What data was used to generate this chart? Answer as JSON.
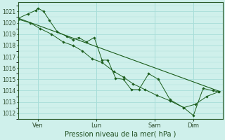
{
  "xlabel": "Pression niveau de la mer( hPa )",
  "background_color": "#cff0eb",
  "grid_color": "#a8ddd8",
  "line_color": "#1a5c1a",
  "marker_color": "#1a5c1a",
  "ylim": [
    1011.5,
    1021.8
  ],
  "yticks": [
    1012,
    1013,
    1014,
    1015,
    1016,
    1017,
    1018,
    1019,
    1020,
    1021
  ],
  "xtick_labels": [
    "Ven",
    "Lun",
    "Sam",
    "Dim"
  ],
  "xtick_positions": [
    1,
    4,
    7,
    9
  ],
  "xlim": [
    0,
    10.5
  ],
  "series1_x": [
    0.0,
    0.5,
    0.9,
    1.0,
    1.3,
    1.6,
    2.0,
    2.5,
    2.8,
    3.1,
    3.5,
    3.9,
    4.3,
    4.6,
    5.0,
    5.4,
    5.8,
    6.2,
    6.7,
    7.2,
    7.8,
    8.5,
    9.0,
    9.5,
    10.0,
    10.3
  ],
  "series1_y": [
    1020.4,
    1020.8,
    1021.1,
    1021.3,
    1021.0,
    1020.2,
    1019.2,
    1018.8,
    1018.5,
    1018.7,
    1018.3,
    1018.7,
    1016.7,
    1016.7,
    1015.1,
    1015.0,
    1014.1,
    1014.1,
    1015.5,
    1015.0,
    1013.2,
    1012.5,
    1011.8,
    1014.2,
    1014.0,
    1013.9
  ],
  "series2_x": [
    0.0,
    0.6,
    1.1,
    1.7,
    2.3,
    2.8,
    3.3,
    3.8,
    4.3,
    4.9,
    5.4,
    5.9,
    6.5,
    7.1,
    7.8,
    8.5,
    9.1,
    9.7,
    10.3
  ],
  "series2_y": [
    1020.3,
    1020.0,
    1019.5,
    1019.0,
    1018.3,
    1018.0,
    1017.5,
    1016.8,
    1016.5,
    1015.7,
    1015.2,
    1014.6,
    1014.1,
    1013.6,
    1013.1,
    1012.5,
    1012.8,
    1013.5,
    1013.9
  ],
  "trend_x": [
    0.0,
    10.4
  ],
  "trend_y": [
    1020.4,
    1013.9
  ],
  "figsize": [
    3.2,
    2.0
  ],
  "dpi": 100
}
